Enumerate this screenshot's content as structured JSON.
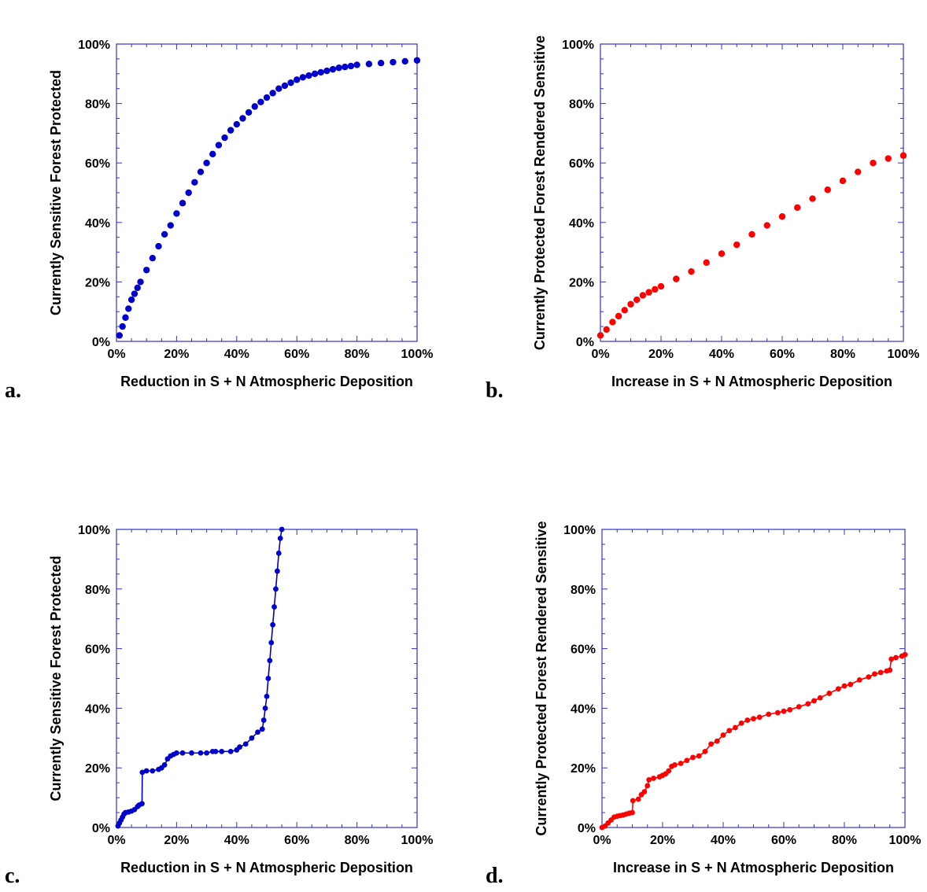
{
  "chart_data": [
    {
      "panel": "a.",
      "type": "scatter",
      "xlabel": "Reduction in S + N Atmospheric Deposition",
      "ylabel": "Currently Sensitive Forest Protected",
      "xlim": [
        0,
        100
      ],
      "ylim": [
        0,
        100
      ],
      "xticks": [
        "0%",
        "20%",
        "40%",
        "60%",
        "80%",
        "100%"
      ],
      "yticks": [
        "0%",
        "20%",
        "40%",
        "60%",
        "80%",
        "100%"
      ],
      "color": "#0000cc",
      "connect": false,
      "series": [
        {
          "x": [
            1,
            2,
            3,
            4,
            5,
            6,
            7,
            8,
            10,
            12,
            14,
            16,
            18,
            20,
            22,
            24,
            26,
            28,
            30,
            32,
            34,
            36,
            38,
            40,
            42,
            44,
            46,
            48,
            50,
            52,
            54,
            56,
            58,
            60,
            62,
            64,
            66,
            68,
            70,
            72,
            74,
            76,
            78,
            80,
            84,
            88,
            92,
            96,
            100
          ],
          "y": [
            2,
            5,
            8,
            11,
            14,
            16,
            18,
            20,
            24,
            28,
            32,
            36,
            39,
            43,
            46.5,
            50,
            53.5,
            57,
            60,
            63,
            66,
            68.5,
            71,
            73,
            75,
            77,
            79,
            80.5,
            82,
            83.5,
            85,
            86,
            87,
            88,
            88.8,
            89.4,
            90,
            90.5,
            91,
            91.5,
            92,
            92.3,
            92.6,
            93,
            93.3,
            93.6,
            93.9,
            94.2,
            94.5
          ]
        }
      ]
    },
    {
      "panel": "b.",
      "type": "scatter",
      "xlabel": "Increase in S + N Atmospheric Deposition",
      "ylabel": "Currently Protected Forest Rendered Sensitive",
      "xlim": [
        0,
        100
      ],
      "ylim": [
        0,
        100
      ],
      "xticks": [
        "0%",
        "20%",
        "40%",
        "60%",
        "80%",
        "100%"
      ],
      "yticks": [
        "0%",
        "20%",
        "40%",
        "60%",
        "80%",
        "100%"
      ],
      "color": "#ff0000",
      "connect": false,
      "series": [
        {
          "x": [
            0,
            2,
            4,
            6,
            8,
            10,
            12,
            14,
            16,
            18,
            20,
            25,
            30,
            35,
            40,
            45,
            50,
            55,
            60,
            65,
            70,
            75,
            80,
            85,
            90,
            95,
            100
          ],
          "y": [
            2,
            4,
            6.5,
            8.5,
            10.5,
            12.5,
            14,
            15.5,
            16.5,
            17.5,
            18.5,
            21,
            23.5,
            26.5,
            29.5,
            32.5,
            36,
            39,
            42,
            45,
            48,
            51,
            54,
            57,
            60,
            61.5,
            62.5
          ]
        }
      ]
    },
    {
      "panel": "c.",
      "type": "line",
      "xlabel": "Reduction in S + N Atmospheric Deposition",
      "ylabel": "Currently Sensitive Forest Protected",
      "xlim": [
        0,
        100
      ],
      "ylim": [
        0,
        100
      ],
      "xticks": [
        "0%",
        "20%",
        "40%",
        "60%",
        "80%",
        "100%"
      ],
      "yticks": [
        "0%",
        "20%",
        "40%",
        "60%",
        "80%",
        "100%"
      ],
      "color": "#0000cc",
      "connect": true,
      "series": [
        {
          "x": [
            0.5,
            1,
            1.5,
            2,
            2.5,
            3,
            4,
            5,
            6,
            7,
            7.5,
            8.5,
            8.6,
            10,
            12,
            14,
            15,
            16,
            17,
            18,
            19,
            20,
            22,
            25,
            28,
            30,
            32,
            33,
            35,
            38,
            40,
            41,
            43,
            45,
            47,
            48.5,
            49,
            49.5,
            50,
            50.5,
            51,
            51.5,
            52,
            52.5,
            53,
            53.5,
            54,
            54.5,
            55
          ],
          "y": [
            0.5,
            1.5,
            2.5,
            3.5,
            4.5,
            5,
            5.2,
            5.5,
            6,
            7,
            7.5,
            8,
            18.5,
            19,
            19,
            19.5,
            20,
            21,
            23,
            24,
            24.5,
            25,
            25,
            25,
            25,
            25,
            25.5,
            25.5,
            25.5,
            25.5,
            26,
            27,
            28,
            30,
            32,
            33,
            36,
            40,
            44,
            50,
            56,
            62,
            68,
            74,
            80,
            86,
            92,
            97,
            100
          ]
        }
      ]
    },
    {
      "panel": "d.",
      "type": "line",
      "xlabel": "Increase in S + N Atmospheric Deposition",
      "ylabel": "Currently Protected Forest Rendered Sensitive",
      "xlim": [
        0,
        100
      ],
      "ylim": [
        0,
        100
      ],
      "xticks": [
        "0%",
        "20%",
        "40%",
        "60%",
        "80%",
        "100%"
      ],
      "yticks": [
        "0%",
        "20%",
        "40%",
        "60%",
        "80%",
        "100%"
      ],
      "color": "#ff0000",
      "connect": true,
      "series": [
        {
          "x": [
            0,
            1,
            2,
            3,
            4,
            5,
            6,
            7,
            8,
            9,
            10,
            10.2,
            12,
            13,
            14,
            15,
            15.5,
            17,
            19,
            20,
            21,
            22,
            23,
            24,
            26,
            28,
            30,
            32,
            34,
            36,
            38,
            40,
            42,
            44,
            46,
            48,
            50,
            52,
            55,
            58,
            60,
            62,
            65,
            68,
            70,
            72,
            75,
            78,
            80,
            82,
            85,
            88,
            90,
            92,
            94,
            95,
            95.5,
            97,
            99,
            100
          ],
          "y": [
            0,
            0.5,
            1.5,
            2.5,
            3.5,
            3.8,
            4,
            4.2,
            4.5,
            4.8,
            5,
            9,
            9.5,
            11,
            12,
            14,
            16,
            16.5,
            17,
            17.5,
            18,
            19,
            20.5,
            21,
            21.5,
            22.5,
            23.5,
            24,
            25.5,
            28,
            29,
            31,
            32.5,
            33.5,
            35,
            36,
            36.5,
            37,
            38,
            38.5,
            39,
            39.5,
            40.5,
            41.5,
            42.5,
            43.5,
            45,
            46.5,
            47.5,
            48,
            49.5,
            50.5,
            51.5,
            52,
            52.5,
            52.8,
            56.5,
            57,
            57.5,
            58
          ]
        }
      ]
    }
  ]
}
